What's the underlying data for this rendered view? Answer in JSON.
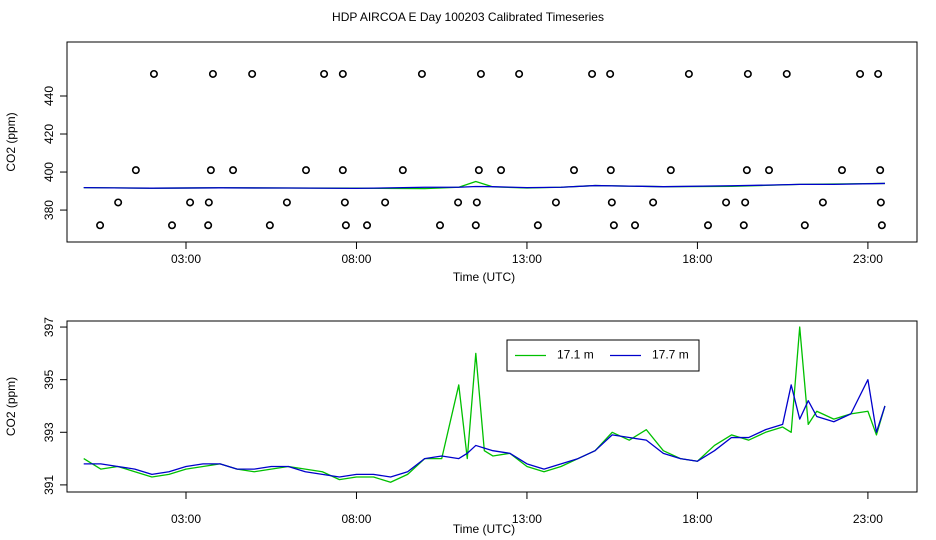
{
  "chart_data": [
    {
      "type": "line",
      "title": "HDP AIRCOA E  Day 100203  Calibrated Timeseries",
      "xlabel": "Time (UTC)",
      "ylabel": "CO2 (ppm)",
      "xlim": [
        -0.49,
        24.44
      ],
      "ylim": [
        363.2,
        468.4
      ],
      "xticks": [
        {
          "value": 3,
          "label": "03:00"
        },
        {
          "value": 8,
          "label": "08:00"
        },
        {
          "value": 13,
          "label": "13:00"
        },
        {
          "value": 18,
          "label": "18:00"
        },
        {
          "value": 23,
          "label": "23:00"
        }
      ],
      "yticks": [
        380,
        400,
        420,
        440
      ],
      "x": [
        0,
        2,
        4,
        6,
        8,
        10,
        11,
        11.5,
        12,
        13,
        14,
        15,
        17,
        19,
        20,
        21,
        22,
        23.5
      ],
      "series": [
        {
          "color": "#00c000",
          "values": [
            391.8,
            391.5,
            391.7,
            391.6,
            391.5,
            391.3,
            392.0,
            395.0,
            392.2,
            391.6,
            392.0,
            392.9,
            392.3,
            392.5,
            393.0,
            393.5,
            393.7,
            394.0
          ]
        },
        {
          "color": "#0000cc",
          "values": [
            391.8,
            391.5,
            391.7,
            391.6,
            391.4,
            392.0,
            392.0,
            392.4,
            392.3,
            391.8,
            392.0,
            392.9,
            392.3,
            392.8,
            393.1,
            393.5,
            393.5,
            394.0
          ]
        }
      ],
      "points": {
        "color": "#000000",
        "x": [
          2.06,
          3.79,
          4.94,
          7.05,
          7.6,
          9.92,
          11.65,
          12.77,
          14.91,
          15.44,
          17.75,
          19.48,
          20.62,
          22.77,
          23.3,
          1.53,
          3.73,
          4.38,
          6.52,
          7.6,
          9.36,
          11.59,
          12.24,
          14.38,
          15.46,
          17.22,
          19.45,
          20.1,
          22.24,
          23.36,
          1.01,
          3.12,
          3.67,
          5.96,
          7.66,
          8.84,
          10.98,
          11.53,
          13.85,
          15.49,
          16.7,
          18.84,
          19.4,
          21.68,
          23.38,
          0.48,
          2.59,
          3.65,
          5.46,
          7.69,
          8.31,
          10.45,
          11.5,
          13.32,
          15.55,
          16.17,
          18.31,
          19.36,
          21.15,
          23.41
        ],
        "values": [
          451.6,
          451.6,
          451.6,
          451.6,
          451.6,
          451.6,
          451.6,
          451.6,
          451.6,
          451.6,
          451.6,
          451.6,
          451.6,
          451.6,
          451.6,
          401,
          401,
          401,
          401,
          401,
          401,
          401,
          401,
          401,
          401,
          401,
          401,
          401,
          401,
          401,
          384,
          384,
          384,
          384,
          384,
          384,
          384,
          384,
          384,
          384,
          384,
          384,
          384,
          384,
          384,
          372,
          372,
          372,
          372,
          372,
          372,
          372,
          372,
          372,
          372,
          372,
          372,
          372,
          372,
          372
        ]
      }
    },
    {
      "type": "line",
      "xlabel": "Time (UTC)",
      "ylabel": "CO2 (ppm)",
      "xlim": [
        -0.49,
        24.44
      ],
      "ylim": [
        390.73,
        397.23
      ],
      "xticks": [
        {
          "value": 3,
          "label": "03:00"
        },
        {
          "value": 8,
          "label": "08:00"
        },
        {
          "value": 13,
          "label": "13:00"
        },
        {
          "value": 18,
          "label": "18:00"
        },
        {
          "value": 23,
          "label": "23:00"
        }
      ],
      "yticks": [
        391,
        393,
        395,
        397
      ],
      "legend": "top",
      "x": [
        0,
        0.5,
        1,
        1.5,
        2,
        2.5,
        3,
        3.5,
        4,
        4.5,
        5,
        5.5,
        6,
        6.5,
        7,
        7.5,
        8,
        8.5,
        9,
        9.5,
        10,
        10.5,
        11,
        11.25,
        11.5,
        11.75,
        12,
        12.5,
        13,
        13.5,
        14,
        14.5,
        15,
        15.5,
        16,
        16.5,
        17,
        17.5,
        18,
        18.5,
        19,
        19.5,
        20,
        20.5,
        20.75,
        21,
        21.25,
        21.5,
        22,
        22.5,
        23,
        23.25,
        23.5
      ],
      "series": [
        {
          "name": "17.1 m",
          "color": "#00c000",
          "values": [
            392.0,
            391.6,
            391.7,
            391.5,
            391.3,
            391.4,
            391.6,
            391.7,
            391.8,
            391.6,
            391.5,
            391.6,
            391.7,
            391.6,
            391.5,
            391.2,
            391.3,
            391.3,
            391.1,
            391.4,
            392.0,
            392.0,
            394.8,
            392.0,
            396.0,
            392.3,
            392.1,
            392.2,
            391.7,
            391.5,
            391.7,
            392.0,
            392.3,
            393.0,
            392.7,
            393.1,
            392.3,
            392.0,
            391.9,
            392.5,
            392.9,
            392.7,
            393.0,
            393.2,
            393.0,
            397.0,
            393.3,
            393.8,
            393.5,
            393.7,
            393.8,
            392.9,
            394.0
          ]
        },
        {
          "name": "17.7 m",
          "color": "#0000cc",
          "values": [
            391.8,
            391.8,
            391.7,
            391.6,
            391.4,
            391.5,
            391.7,
            391.8,
            391.8,
            391.6,
            391.6,
            391.7,
            391.7,
            391.5,
            391.4,
            391.3,
            391.4,
            391.4,
            391.3,
            391.5,
            392.0,
            392.1,
            392.0,
            392.2,
            392.5,
            392.4,
            392.3,
            392.2,
            391.8,
            391.6,
            391.8,
            392.0,
            392.3,
            392.9,
            392.8,
            392.7,
            392.2,
            392.0,
            391.9,
            392.3,
            392.8,
            392.8,
            393.1,
            393.3,
            394.8,
            393.5,
            394.2,
            393.6,
            393.4,
            393.7,
            395.0,
            393.0,
            394.0
          ]
        }
      ]
    }
  ]
}
